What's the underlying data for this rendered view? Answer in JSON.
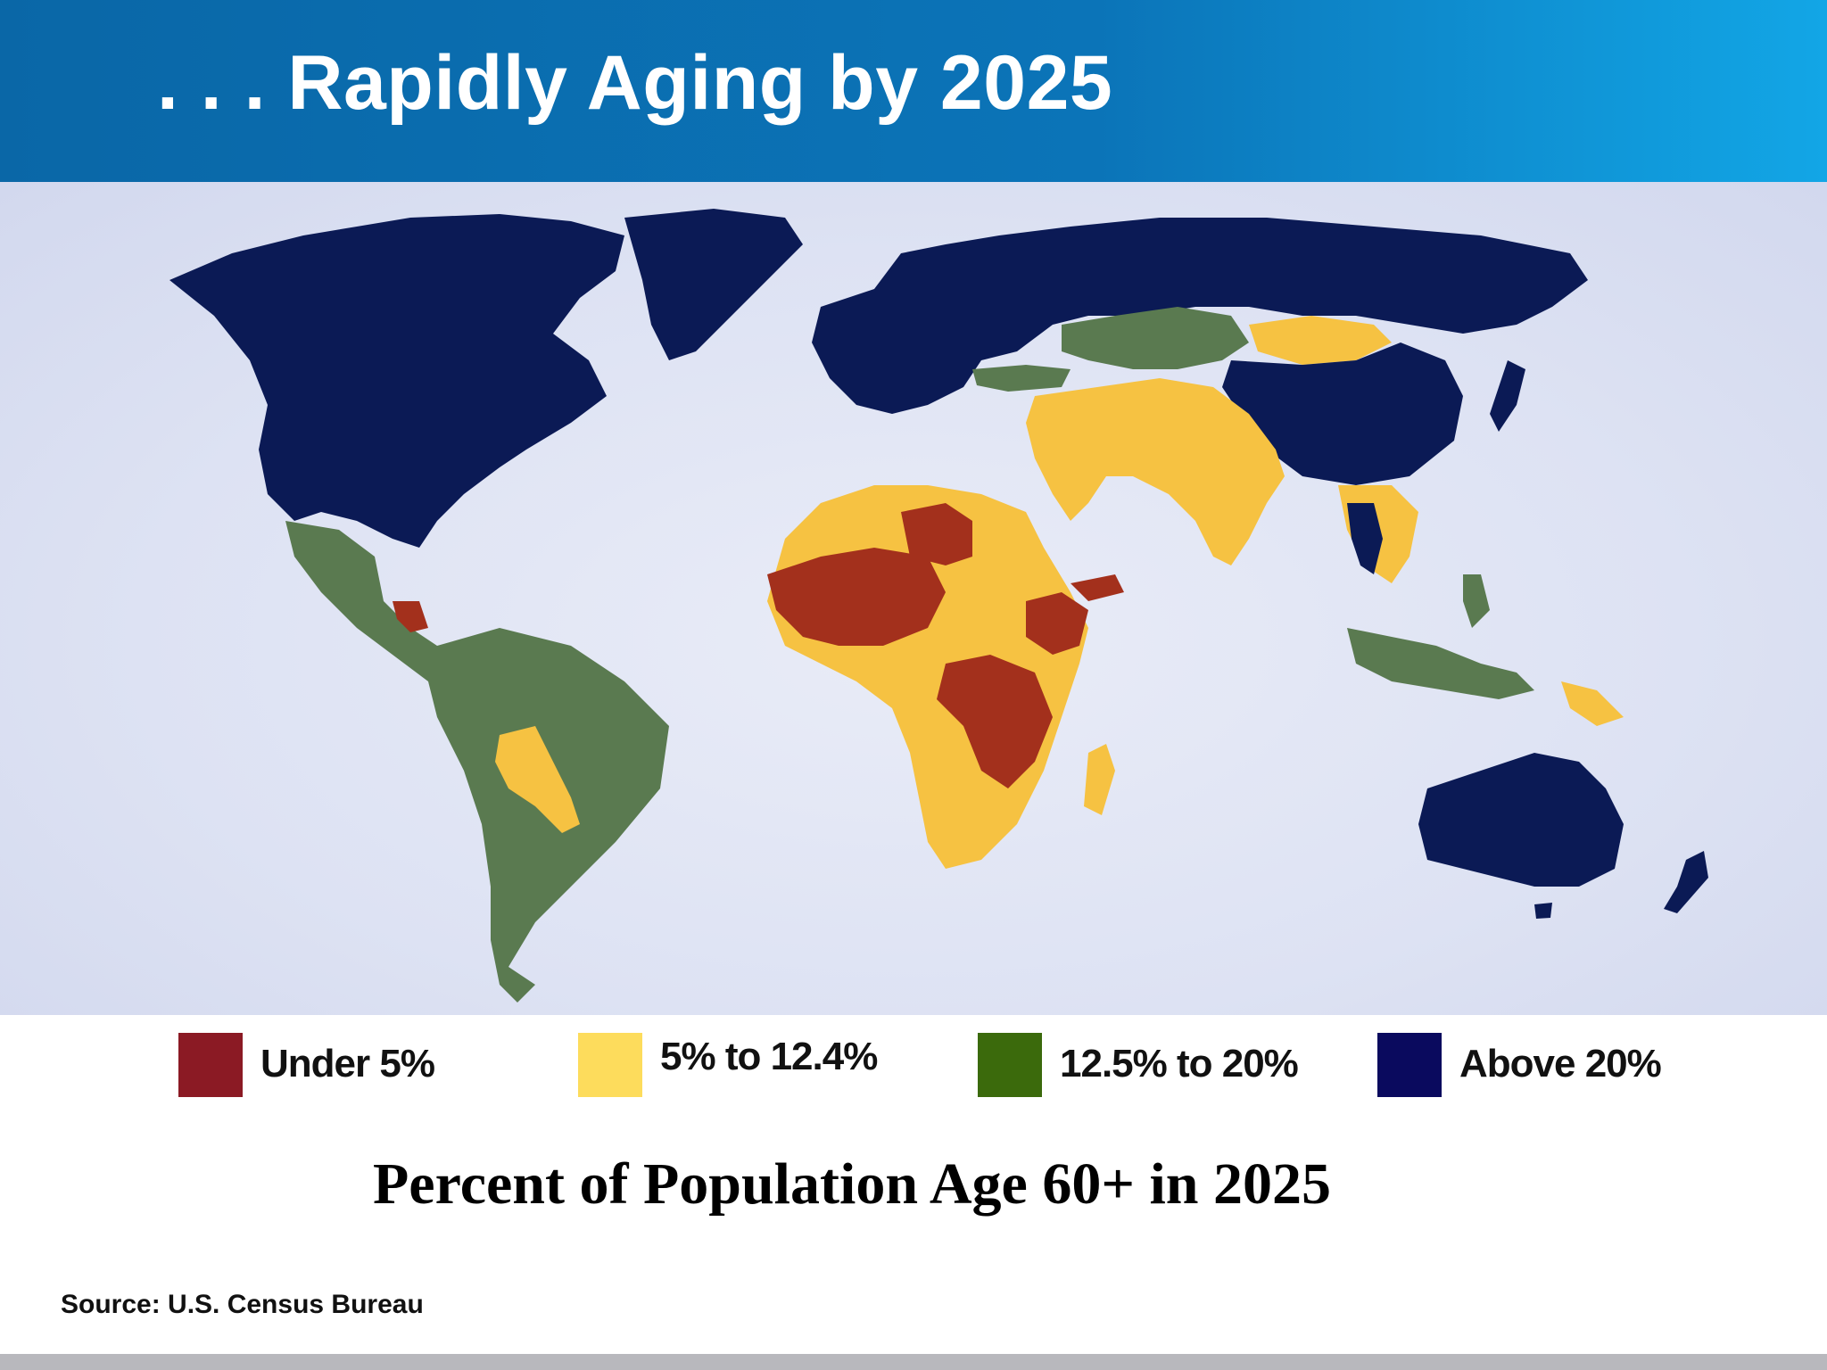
{
  "header": {
    "title": ". . . Rapidly Aging by 2025"
  },
  "legend": {
    "items": [
      {
        "label": "Under 5%",
        "color": "#8b1a24"
      },
      {
        "label": "5% to 12.4%",
        "color": "#fddc5c"
      },
      {
        "label": "12.5% to 20%",
        "color": "#3b6a0c"
      },
      {
        "label": "Above 20%",
        "color": "#0a0a5e"
      }
    ]
  },
  "map": {
    "caption": "Percent of Population Age 60+ in 2025",
    "colors": {
      "ocean": "#dde2f3",
      "under5": "#a3301c",
      "mid": "#f6c242",
      "upper": "#5a7a50",
      "above20": "#0b1a55"
    }
  },
  "source": "Source: U.S. Census Bureau"
}
